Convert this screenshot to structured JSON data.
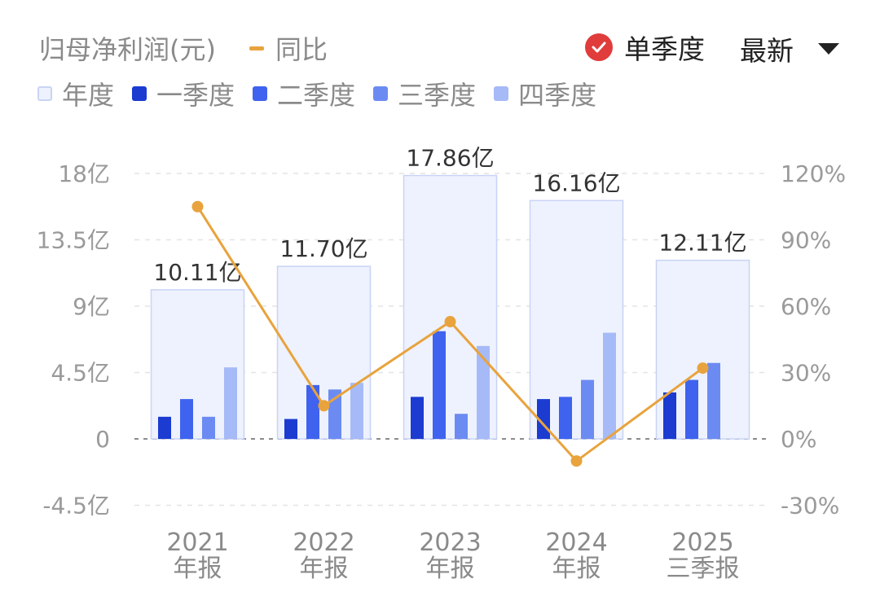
{
  "header": {
    "title": "归母净利润(元)",
    "yoy_label": "同比",
    "mode_label": "单季度",
    "sort_label": "最新"
  },
  "legend": [
    {
      "label": "年度",
      "color": "#eaefff"
    },
    {
      "label": "一季度",
      "color": "#1b3bd1"
    },
    {
      "label": "二季度",
      "color": "#3f63ee"
    },
    {
      "label": "三季度",
      "color": "#6c8bf2"
    },
    {
      "label": "四季度",
      "color": "#a6baf7"
    }
  ],
  "chart_data": {
    "type": "bar",
    "categories": [
      {
        "year": "2021",
        "period": "年报"
      },
      {
        "year": "2022",
        "period": "年报"
      },
      {
        "year": "2023",
        "period": "年报"
      },
      {
        "year": "2024",
        "period": "年报"
      },
      {
        "year": "2025",
        "period": "三季报"
      }
    ],
    "annual": [
      10.11,
      11.7,
      17.86,
      16.16,
      12.11
    ],
    "annual_labels": [
      "10.11亿",
      "11.70亿",
      "17.86亿",
      "16.16亿",
      "12.11亿"
    ],
    "series": [
      {
        "name": "一季度",
        "values": [
          1.5,
          1.35,
          2.85,
          2.7,
          3.15
        ]
      },
      {
        "name": "二季度",
        "values": [
          2.7,
          3.65,
          7.3,
          2.85,
          4.0
        ]
      },
      {
        "name": "三季度",
        "values": [
          1.5,
          3.35,
          1.7,
          4.0,
          5.15
        ]
      },
      {
        "name": "四季度",
        "values": [
          4.85,
          3.8,
          6.3,
          7.2,
          null
        ]
      }
    ],
    "yoy": {
      "name": "同比",
      "values": [
        105,
        15,
        53,
        -10,
        32
      ],
      "color": "#e8a33d"
    },
    "y_left": {
      "ticks": [
        "18亿",
        "13.5亿",
        "9亿",
        "4.5亿",
        "0",
        "-4.5亿"
      ],
      "range": [
        -4.5,
        18
      ]
    },
    "y_right": {
      "ticks": [
        "120%",
        "90%",
        "60%",
        "30%",
        "0%",
        "-30%"
      ],
      "range": [
        -30,
        120
      ]
    },
    "grid": true
  }
}
